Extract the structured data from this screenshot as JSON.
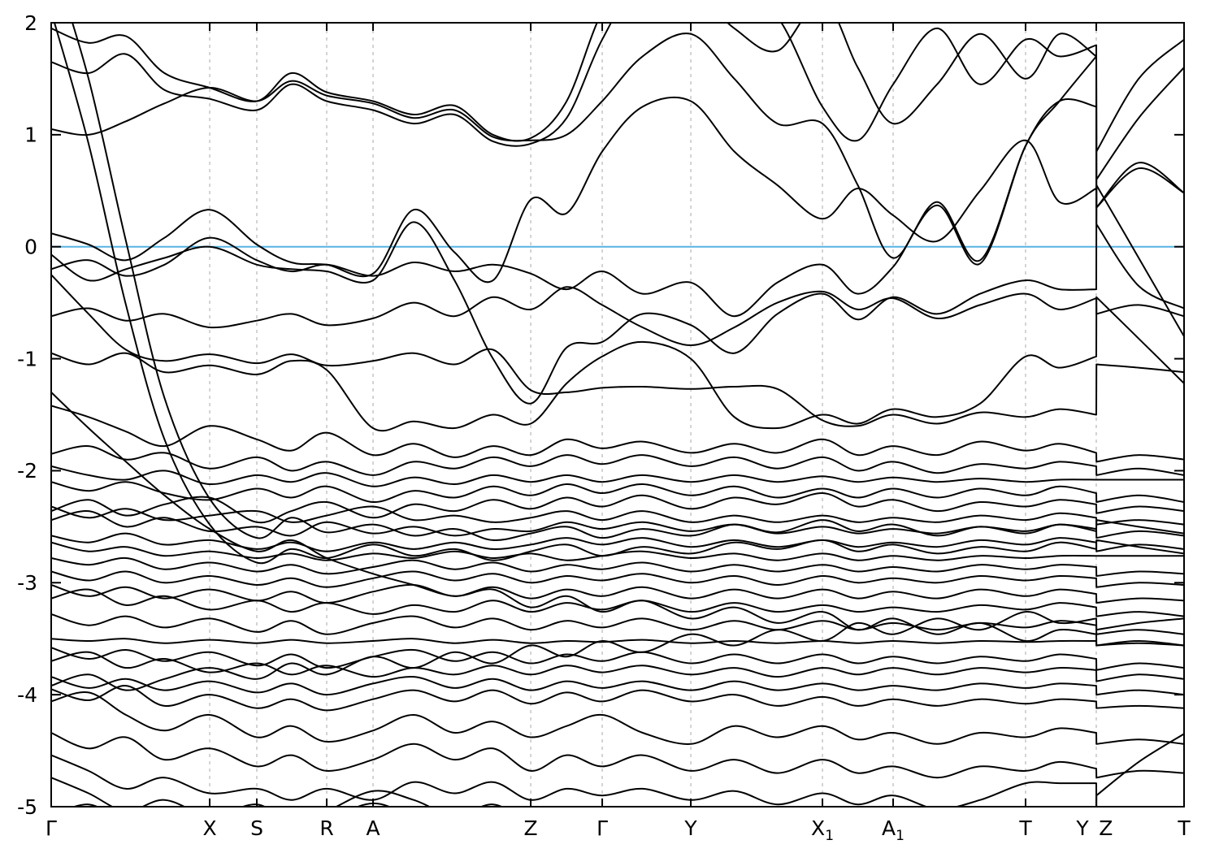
{
  "chart_data": {
    "type": "line",
    "title": "",
    "description": "Electronic band structure along high-symmetry k-path with Fermi level at 0",
    "ylabel": "",
    "xlabel": "",
    "y_axis": {
      "min": -5,
      "max": 2,
      "ticks": [
        2,
        1,
        0,
        -1,
        -2,
        -3,
        -4,
        -5
      ]
    },
    "fermi_level": 0,
    "legend": "none",
    "grid": "vertical-dashed",
    "colors": {
      "band": "#000000",
      "fermi": "#57b4e3",
      "gridline": "#a9a9a9",
      "axis": "#000000",
      "background": "#ffffff",
      "text": "#000000"
    },
    "xticks": [
      {
        "label": "Γ",
        "pos": 0.0,
        "grid": false,
        "tick": true
      },
      {
        "label": "X",
        "pos": 0.1399,
        "grid": true,
        "tick": true
      },
      {
        "label": "S",
        "pos": 0.1815,
        "grid": true,
        "tick": true
      },
      {
        "label": "R",
        "pos": 0.2432,
        "grid": true,
        "tick": true
      },
      {
        "label": "A",
        "pos": 0.2841,
        "grid": true,
        "tick": true
      },
      {
        "label": "Z",
        "pos": 0.4233,
        "grid": true,
        "tick": true
      },
      {
        "label": "Γ",
        "pos": 0.4864,
        "grid": true,
        "tick": true
      },
      {
        "label": "Y",
        "pos": 0.5646,
        "grid": true,
        "tick": true
      },
      {
        "label": "X",
        "sub": "1",
        "pos": 0.6808,
        "grid": true,
        "tick": true
      },
      {
        "label": "A",
        "sub": "1",
        "pos": 0.7432,
        "grid": true,
        "tick": true
      },
      {
        "label": "T",
        "pos": 0.8601,
        "grid": true,
        "tick": true
      },
      {
        "label": "Y",
        "pos": 0.9225,
        "label_pos": 0.9103,
        "grid": true,
        "tick": true
      },
      {
        "label": "Z",
        "pos": 0.9225,
        "label_pos": 0.931,
        "grid": false,
        "tick": false
      },
      {
        "label": "T",
        "pos": 1.0,
        "grid": false,
        "tick": true
      }
    ],
    "x_stations": [
      0.0,
      0.033,
      0.066,
      0.1,
      0.1399,
      0.1815,
      0.212,
      0.2432,
      0.2841,
      0.32,
      0.356,
      0.39,
      0.4233,
      0.455,
      0.4864,
      0.522,
      0.5646,
      0.603,
      0.641,
      0.6808,
      0.712,
      0.7432,
      0.782,
      0.82,
      0.8601,
      0.89,
      0.9225,
      0.9227,
      0.96,
      1.0
    ],
    "bands": [
      [
        1.95,
        1.82,
        1.88,
        1.55,
        1.42,
        1.3,
        1.55,
        1.38,
        1.3,
        1.18,
        1.26,
        1.0,
        0.97,
        1.3,
        2.1,
        2.6,
        2.5,
        2.2,
        2.05,
        1.25,
        0.95,
        1.45,
        1.95,
        1.45,
        1.85,
        1.7,
        1.8,
        0.85,
        1.5,
        1.85
      ],
      [
        1.65,
        1.55,
        1.72,
        1.4,
        1.32,
        1.22,
        1.45,
        1.3,
        1.22,
        1.1,
        1.18,
        0.94,
        0.92,
        1.15,
        1.85,
        2.4,
        2.3,
        1.95,
        1.75,
        2.2,
        1.6,
        1.1,
        1.45,
        1.9,
        1.5,
        1.9,
        1.7,
        0.6,
        1.15,
        1.6
      ],
      [
        1.05,
        1.0,
        1.12,
        1.28,
        1.42,
        1.3,
        1.48,
        1.35,
        1.28,
        1.15,
        1.22,
        0.98,
        0.95,
        1.0,
        1.3,
        1.7,
        1.9,
        1.5,
        1.1,
        1.1,
        0.55,
        -0.1,
        0.4,
        -0.12,
        0.9,
        1.3,
        1.25,
        0.35,
        0.7,
        0.48
      ],
      [
        2.6,
        1.5,
        0.05,
        -1.35,
        -2.25,
        -2.6,
        -2.42,
        -2.55,
        -2.48,
        -2.58,
        -2.52,
        -2.62,
        -2.56,
        -2.5,
        -2.6,
        -2.52,
        -2.58,
        -2.48,
        -2.55,
        -2.44,
        -2.54,
        -2.48,
        -2.58,
        -2.5,
        -2.56,
        -2.48,
        -2.54,
        -2.44,
        -2.5,
        -2.56
      ],
      [
        2.1,
        0.92,
        -0.52,
        -1.72,
        -2.48,
        -2.82,
        -2.7,
        -2.78,
        -2.66,
        -2.76,
        -2.7,
        -2.8,
        -2.72,
        -2.66,
        -2.76,
        -2.68,
        -2.74,
        -2.64,
        -2.7,
        -2.62,
        -2.72,
        -2.66,
        -2.74,
        -2.68,
        -2.72,
        -2.64,
        -2.7,
        -2.62,
        -2.68,
        -2.74
      ],
      [
        0.12,
        0.02,
        -0.12,
        0.08,
        0.33,
        0.02,
        -0.14,
        -0.16,
        -0.24,
        0.33,
        -0.05,
        -0.3,
        0.42,
        0.3,
        0.85,
        1.25,
        1.3,
        0.85,
        0.55,
        0.25,
        0.52,
        0.28,
        0.05,
        0.5,
        0.95,
        0.4,
        0.52,
        0.35,
        0.75,
        0.48
      ],
      [
        -0.07,
        -0.3,
        -0.2,
        -0.1,
        0.0,
        -0.16,
        -0.2,
        -0.22,
        -0.3,
        0.22,
        -0.3,
        -1.0,
        -1.4,
        -0.9,
        -0.85,
        -0.6,
        -0.7,
        -0.95,
        -0.6,
        -0.42,
        -0.65,
        -0.45,
        -0.6,
        -0.42,
        -0.3,
        -0.38,
        -0.38,
        0.55,
        -0.1,
        -0.8
      ],
      [
        -0.25,
        -0.6,
        -0.92,
        -1.02,
        -0.96,
        -1.04,
        -0.96,
        -1.06,
        -1.02,
        -0.95,
        -1.05,
        -0.92,
        -1.28,
        -1.3,
        -1.26,
        -1.25,
        -1.27,
        -1.25,
        -1.27,
        -1.55,
        -1.6,
        -1.5,
        -1.58,
        -1.48,
        -1.52,
        -1.45,
        -1.5,
        -1.05,
        -1.08,
        -1.12
      ],
      [
        -0.95,
        -1.05,
        -0.95,
        -1.12,
        -1.06,
        -1.14,
        -1.02,
        -1.1,
        -1.62,
        -1.56,
        -1.62,
        -1.5,
        -1.58,
        -1.22,
        -0.98,
        -0.85,
        -1.0,
        -1.52,
        -1.62,
        -1.5,
        -1.58,
        -1.45,
        -1.52,
        -1.4,
        -0.98,
        -1.08,
        -0.98,
        -0.45,
        -0.82,
        -1.22
      ],
      [
        -0.62,
        -0.55,
        -0.66,
        -0.6,
        -0.72,
        -0.66,
        -0.6,
        -0.7,
        -0.64,
        -0.5,
        -0.62,
        -0.45,
        -0.56,
        -0.36,
        -0.52,
        -0.72,
        -0.88,
        -0.72,
        -0.5,
        -0.4,
        -0.56,
        -0.46,
        -0.64,
        -0.52,
        -0.42,
        -0.56,
        -0.46,
        -0.6,
        -0.52,
        -0.62
      ],
      [
        -0.2,
        -0.12,
        -0.26,
        -0.16,
        0.08,
        -0.12,
        -0.22,
        -0.16,
        -0.26,
        -0.14,
        -0.22,
        -0.16,
        -0.24,
        -0.38,
        -0.22,
        -0.42,
        -0.32,
        -0.62,
        -0.32,
        -0.16,
        -0.42,
        -0.18,
        0.37,
        -0.15,
        0.9,
        1.3,
        1.7,
        0.2,
        -0.35,
        -0.55
      ],
      [
        -1.42,
        -1.52,
        -1.65,
        -1.78,
        -1.6,
        -1.72,
        -1.82,
        -1.66,
        -1.86,
        -1.76,
        -1.88,
        -1.78,
        -1.86,
        -1.72,
        -1.8,
        -1.74,
        -1.84,
        -1.76,
        -1.84,
        -1.72,
        -1.86,
        -1.78,
        -1.86,
        -1.74,
        -1.82,
        -1.76,
        -1.84,
        -1.92,
        -1.86,
        -1.9
      ],
      [
        -1.85,
        -1.78,
        -1.9,
        -1.84,
        -1.98,
        -1.88,
        -2.0,
        -1.92,
        -2.04,
        -1.92,
        -1.98,
        -1.88,
        -1.96,
        -1.86,
        -1.94,
        -1.86,
        -1.96,
        -1.88,
        -1.98,
        -1.88,
        -2.0,
        -1.92,
        -2.02,
        -1.94,
        -1.98,
        -1.92,
        -1.96,
        -2.04,
        -1.98,
        -2.04
      ],
      [
        -1.96,
        -2.04,
        -2.08,
        -2.0,
        -2.12,
        -2.04,
        -2.1,
        -2.02,
        -2.14,
        -2.06,
        -2.12,
        -2.04,
        -2.1,
        -2.04,
        -2.1,
        -2.04,
        -2.1,
        -2.04,
        -2.1,
        -2.05,
        -2.1,
        -2.06,
        -2.1,
        -2.07,
        -2.1,
        -2.08,
        -2.08,
        -2.08,
        -2.08,
        -2.08
      ],
      [
        -2.1,
        -2.18,
        -2.1,
        -2.2,
        -2.26,
        -2.16,
        -2.24,
        -2.14,
        -2.28,
        -2.18,
        -2.24,
        -2.14,
        -2.22,
        -2.12,
        -2.2,
        -2.12,
        -2.22,
        -2.14,
        -2.24,
        -2.16,
        -2.24,
        -2.16,
        -2.24,
        -2.16,
        -2.22,
        -2.14,
        -2.2,
        -2.28,
        -2.22,
        -2.28
      ],
      [
        -2.36,
        -2.26,
        -2.4,
        -2.3,
        -2.24,
        -2.46,
        -2.36,
        -2.28,
        -2.42,
        -2.3,
        -2.36,
        -2.26,
        -2.34,
        -2.24,
        -2.32,
        -2.22,
        -2.34,
        -2.24,
        -2.3,
        -2.2,
        -2.32,
        -2.26,
        -2.36,
        -2.28,
        -2.32,
        -2.26,
        -2.3,
        -2.38,
        -2.32,
        -2.36
      ],
      [
        -2.32,
        -2.42,
        -2.34,
        -2.44,
        -2.4,
        -2.36,
        -2.46,
        -2.4,
        -2.32,
        -2.44,
        -2.4,
        -2.46,
        -2.42,
        -2.36,
        -2.44,
        -2.36,
        -2.46,
        -2.4,
        -2.46,
        -2.4,
        -2.46,
        -2.42,
        -2.46,
        -2.4,
        -2.44,
        -2.38,
        -2.42,
        -2.48,
        -2.44,
        -2.48
      ],
      [
        -2.44,
        -2.36,
        -2.5,
        -2.42,
        -2.54,
        -2.5,
        -2.58,
        -2.46,
        -2.56,
        -2.5,
        -2.58,
        -2.52,
        -2.54,
        -2.46,
        -2.52,
        -2.46,
        -2.54,
        -2.48,
        -2.56,
        -2.5,
        -2.56,
        -2.52,
        -2.56,
        -2.5,
        -2.54,
        -2.48,
        -2.52,
        -2.6,
        -2.54,
        -2.58
      ],
      [
        -2.58,
        -2.64,
        -2.56,
        -2.66,
        -2.62,
        -2.7,
        -2.64,
        -2.72,
        -2.64,
        -2.7,
        -2.64,
        -2.7,
        -2.66,
        -2.6,
        -2.66,
        -2.6,
        -2.68,
        -2.62,
        -2.68,
        -2.62,
        -2.68,
        -2.64,
        -2.68,
        -2.62,
        -2.66,
        -2.6,
        -2.64,
        -2.72,
        -2.66,
        -2.7
      ],
      [
        -2.64,
        -2.72,
        -2.68,
        -2.76,
        -2.72,
        -2.78,
        -2.74,
        -2.8,
        -2.74,
        -2.78,
        -2.72,
        -2.78,
        -2.74,
        -2.8,
        -2.76,
        -2.72,
        -2.78,
        -2.74,
        -2.8,
        -2.74,
        -2.8,
        -2.76,
        -2.8,
        -2.76,
        -2.78,
        -2.76,
        -2.76,
        -2.76,
        -2.76,
        -2.76
      ],
      [
        -2.78,
        -2.84,
        -2.78,
        -2.88,
        -2.82,
        -2.9,
        -2.84,
        -2.92,
        -2.86,
        -2.8,
        -2.88,
        -2.82,
        -2.9,
        -2.84,
        -2.88,
        -2.82,
        -2.9,
        -2.84,
        -2.9,
        -2.84,
        -2.9,
        -2.86,
        -2.9,
        -2.84,
        -2.88,
        -2.84,
        -2.86,
        -2.94,
        -2.9,
        -2.92
      ],
      [
        -2.9,
        -2.98,
        -2.9,
        -3.0,
        -2.94,
        -3.02,
        -2.96,
        -3.04,
        -2.96,
        -2.9,
        -2.98,
        -2.92,
        -3.0,
        -2.94,
        -2.98,
        -2.92,
        -3.0,
        -2.94,
        -3.02,
        -2.94,
        -3.0,
        -2.96,
        -3.0,
        -2.94,
        -2.98,
        -2.94,
        -2.96,
        -3.04,
        -3.0,
        -3.02
      ],
      [
        -3.02,
        -3.12,
        -3.04,
        -3.14,
        -3.06,
        -3.16,
        -3.08,
        -3.18,
        -3.08,
        -3.02,
        -3.12,
        -3.04,
        -3.14,
        -3.06,
        -3.12,
        -3.04,
        -3.14,
        -3.06,
        -3.14,
        -3.06,
        -3.14,
        -3.08,
        -3.14,
        -3.06,
        -3.12,
        -3.06,
        -3.1,
        -3.18,
        -3.14,
        -3.16
      ],
      [
        -3.14,
        -3.06,
        -3.2,
        -3.12,
        -3.24,
        -3.16,
        -3.26,
        -3.18,
        -3.28,
        -3.2,
        -3.26,
        -3.16,
        -3.26,
        -3.18,
        -3.24,
        -3.16,
        -3.26,
        -3.18,
        -3.26,
        -3.2,
        -3.26,
        -3.22,
        -3.26,
        -3.2,
        -3.24,
        -3.18,
        -3.22,
        -3.3,
        -3.26,
        -3.3
      ],
      [
        -3.28,
        -3.38,
        -3.3,
        -3.4,
        -3.32,
        -3.44,
        -3.34,
        -3.46,
        -3.36,
        -3.3,
        -3.4,
        -3.32,
        -3.42,
        -3.34,
        -3.4,
        -3.32,
        -3.42,
        -3.34,
        -3.42,
        -3.34,
        -3.42,
        -3.36,
        -3.42,
        -3.36,
        -3.4,
        -3.34,
        -3.38,
        -3.46,
        -3.42,
        -3.46
      ],
      [
        -3.5,
        -3.52,
        -3.5,
        -3.54,
        -3.51,
        -3.54,
        -3.51,
        -3.54,
        -3.52,
        -3.5,
        -3.54,
        -3.51,
        -3.54,
        -3.52,
        -3.53,
        -3.51,
        -3.54,
        -3.52,
        -3.54,
        -3.52,
        -3.54,
        -3.52,
        -3.54,
        -3.52,
        -3.53,
        -3.52,
        -3.52,
        -3.56,
        -3.54,
        -3.56
      ],
      [
        -3.58,
        -3.68,
        -3.6,
        -3.7,
        -3.62,
        -3.74,
        -3.64,
        -3.76,
        -3.66,
        -3.6,
        -3.7,
        -3.62,
        -3.72,
        -3.64,
        -3.7,
        -3.62,
        -3.72,
        -3.64,
        -3.72,
        -3.64,
        -3.72,
        -3.66,
        -3.72,
        -3.66,
        -3.7,
        -3.64,
        -3.68,
        -3.78,
        -3.72,
        -3.76
      ],
      [
        -3.7,
        -3.62,
        -3.76,
        -3.68,
        -3.8,
        -3.72,
        -3.82,
        -3.74,
        -3.84,
        -3.76,
        -3.82,
        -3.74,
        -3.82,
        -3.74,
        -3.8,
        -3.74,
        -3.82,
        -3.76,
        -3.84,
        -3.76,
        -3.82,
        -3.76,
        -3.82,
        -3.76,
        -3.8,
        -3.76,
        -3.78,
        -3.88,
        -3.82,
        -3.86
      ],
      [
        -3.84,
        -3.94,
        -3.86,
        -3.96,
        -3.88,
        -3.98,
        -3.9,
        -4.0,
        -3.9,
        -3.84,
        -3.94,
        -3.86,
        -3.96,
        -3.88,
        -3.94,
        -3.88,
        -3.96,
        -3.88,
        -3.96,
        -3.9,
        -3.96,
        -3.92,
        -3.96,
        -3.9,
        -3.94,
        -3.9,
        -3.92,
        -4.0,
        -3.96,
        -4.0
      ],
      [
        -1.3,
        -1.62,
        -1.92,
        -2.22,
        -2.52,
        -2.72,
        -2.62,
        -2.78,
        -2.92,
        -3.02,
        -3.12,
        -3.06,
        -3.22,
        -3.12,
        -3.26,
        -3.16,
        -3.32,
        -3.22,
        -3.36,
        -3.26,
        -3.42,
        -3.32,
        -3.46,
        -3.36,
        -3.52,
        -3.42,
        -3.46,
        -3.56,
        -3.52,
        -3.56
      ],
      [
        -3.92,
        -3.82,
        -3.96,
        -3.86,
        -3.76,
        -3.86,
        -3.72,
        -3.82,
        -3.66,
        -3.76,
        -3.62,
        -3.72,
        -3.56,
        -3.66,
        -3.52,
        -3.62,
        -3.46,
        -3.56,
        -3.42,
        -3.52,
        -3.36,
        -3.46,
        -3.32,
        -3.42,
        -3.26,
        -3.36,
        -3.32,
        -3.42,
        -3.36,
        -3.32
      ],
      [
        -3.95,
        -4.05,
        -3.92,
        -4.1,
        -4.0,
        -4.12,
        -4.04,
        -4.14,
        -4.04,
        -3.96,
        -4.06,
        -3.96,
        -4.08,
        -3.98,
        -4.06,
        -3.96,
        -4.06,
        -4.0,
        -4.1,
        -4.02,
        -4.1,
        -4.04,
        -4.1,
        -4.04,
        -4.08,
        -4.04,
        -4.06,
        -4.12,
        -4.1,
        -4.12
      ],
      [
        -4.06,
        -3.98,
        -4.18,
        -4.32,
        -4.18,
        -4.38,
        -4.28,
        -4.42,
        -4.32,
        -4.18,
        -4.34,
        -4.24,
        -4.38,
        -4.28,
        -4.18,
        -4.34,
        -4.44,
        -4.28,
        -4.38,
        -4.28,
        -4.4,
        -4.34,
        -4.44,
        -4.34,
        -4.38,
        -4.3,
        -4.34,
        -4.44,
        -4.4,
        -4.44
      ],
      [
        -4.34,
        -4.48,
        -4.38,
        -4.58,
        -4.48,
        -4.64,
        -4.54,
        -4.68,
        -4.58,
        -4.44,
        -4.58,
        -4.48,
        -4.68,
        -4.54,
        -4.64,
        -4.54,
        -4.68,
        -4.58,
        -4.7,
        -4.58,
        -4.7,
        -4.64,
        -4.74,
        -4.64,
        -4.68,
        -4.6,
        -4.66,
        -4.74,
        -4.68,
        -4.7
      ],
      [
        -4.54,
        -4.68,
        -4.84,
        -4.74,
        -4.88,
        -4.84,
        -4.94,
        -4.84,
        -4.94,
        -4.78,
        -4.88,
        -4.78,
        -4.94,
        -4.84,
        -4.9,
        -4.84,
        -4.94,
        -4.86,
        -4.98,
        -4.88,
        -4.98,
        -4.9,
        -5.02,
        -4.94,
        -4.79,
        -4.79,
        -4.79,
        -5.2,
        -5.1,
        -5.02
      ],
      [
        -4.74,
        -4.88,
        -5.04,
        -4.94,
        -5.08,
        -4.98,
        -5.14,
        -5.04,
        -4.86,
        -4.94,
        -5.08,
        -4.98,
        -5.12,
        -5.02,
        -5.08,
        -5.02,
        -5.12,
        -5.04,
        -5.14,
        -5.06,
        -5.14,
        -5.08,
        -5.16,
        -5.08,
        -5.12,
        -5.06,
        -5.1,
        -4.9,
        -4.6,
        -4.35
      ],
      [
        -5.08,
        -4.98,
        -5.12,
        -5.04,
        -5.18,
        -5.08,
        -5.22,
        -5.12,
        -4.97,
        -5.1,
        -5.22,
        -5.12,
        -5.28,
        -5.18,
        -5.26,
        -5.18,
        -5.28,
        -5.2,
        -5.3,
        -5.22,
        -5.3,
        -5.26,
        -5.32,
        -5.28,
        -5.3,
        -5.26,
        -5.28,
        -5.32,
        -5.28,
        -5.3
      ]
    ]
  }
}
